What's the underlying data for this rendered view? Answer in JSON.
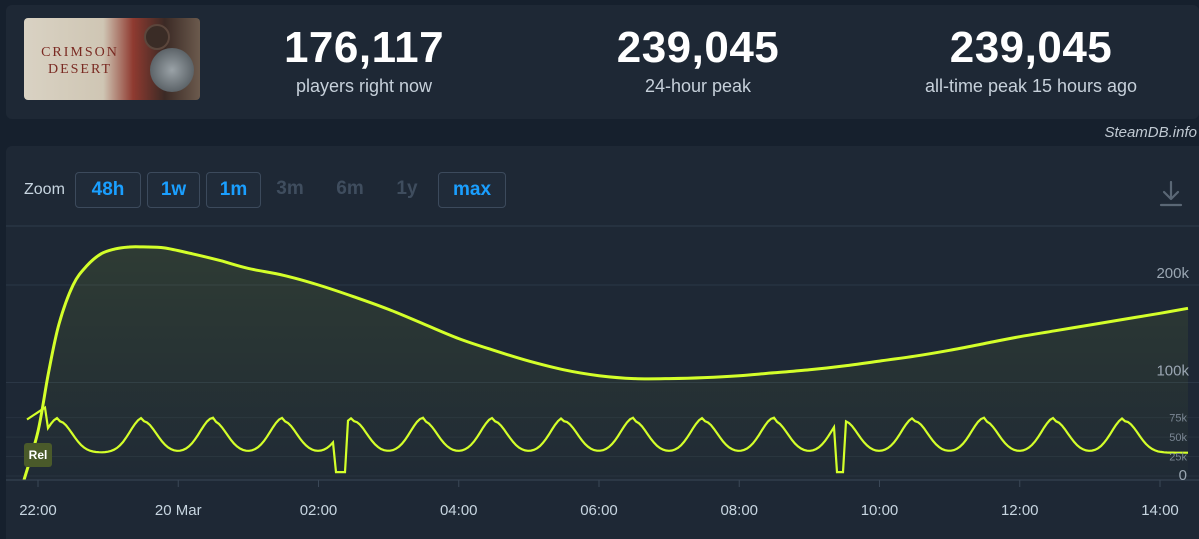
{
  "game": {
    "thumbnail_text": "CRIMSON DESERT"
  },
  "stats": {
    "current": {
      "value": "176,117",
      "label": "players right now"
    },
    "peak_24h": {
      "value": "239,045",
      "label": "24-hour peak"
    },
    "all_time": {
      "value": "239,045",
      "label": "all-time peak 15 hours ago"
    }
  },
  "watermark": "SteamDB.info",
  "zoom": {
    "label": "Zoom",
    "options": [
      {
        "label": "48h",
        "enabled": true
      },
      {
        "label": "1w",
        "enabled": true
      },
      {
        "label": "1m",
        "enabled": true
      },
      {
        "label": "3m",
        "enabled": false
      },
      {
        "label": "6m",
        "enabled": false
      },
      {
        "label": "1y",
        "enabled": false
      },
      {
        "label": "max",
        "enabled": true
      }
    ]
  },
  "icons": {
    "download": "download-icon"
  },
  "colors": {
    "series_line": "#d4ff2a",
    "accent_blue": "#1a9fff",
    "panel_bg": "#1e2835",
    "page_bg": "#16202d"
  },
  "chart_data": {
    "type": "line",
    "x_ticks": [
      "22:00",
      "20 Mar",
      "02:00",
      "04:00",
      "06:00",
      "08:00",
      "10:00",
      "12:00",
      "14:00"
    ],
    "x_tick_hours": [
      0,
      2,
      4,
      6,
      8,
      10,
      12,
      14,
      16
    ],
    "xlim_hours": [
      -0.2,
      16.4
    ],
    "y_ticks": [
      "100k",
      "200k"
    ],
    "y_tick_values": [
      100000,
      200000
    ],
    "ylim": [
      0,
      240000
    ],
    "badge": "Rel",
    "rel_ticks": [
      "75k",
      "50k",
      "25k",
      "0"
    ],
    "rel_tick_values": [
      75000,
      50000,
      25000,
      0
    ],
    "rel_ylim": [
      0,
      90000
    ],
    "series": [
      {
        "hours": [
          -0.2,
          0.0,
          0.15,
          0.3,
          0.5,
          0.7,
          0.9,
          1.1,
          1.3,
          1.5,
          1.8,
          2.2,
          2.6,
          3.0,
          3.5,
          4.0,
          4.5,
          5.0,
          5.5,
          6.0,
          6.5,
          7.0,
          7.5,
          8.0,
          8.5,
          9.0,
          9.5,
          10.0,
          10.5,
          11.0,
          11.5,
          12.0,
          12.5,
          13.0,
          13.5,
          14.0,
          14.5,
          15.0,
          15.5,
          16.0,
          16.4
        ],
        "values": [
          0,
          50000,
          110000,
          160000,
          200000,
          220000,
          232000,
          237000,
          239000,
          239045,
          238000,
          232000,
          225000,
          217000,
          210000,
          200000,
          188000,
          175000,
          160000,
          145000,
          133000,
          122000,
          113000,
          107000,
          104000,
          104000,
          105000,
          107000,
          110000,
          113000,
          117000,
          122000,
          127000,
          133000,
          140000,
          147000,
          153000,
          159000,
          165000,
          171000,
          176117
        ]
      }
    ]
  }
}
